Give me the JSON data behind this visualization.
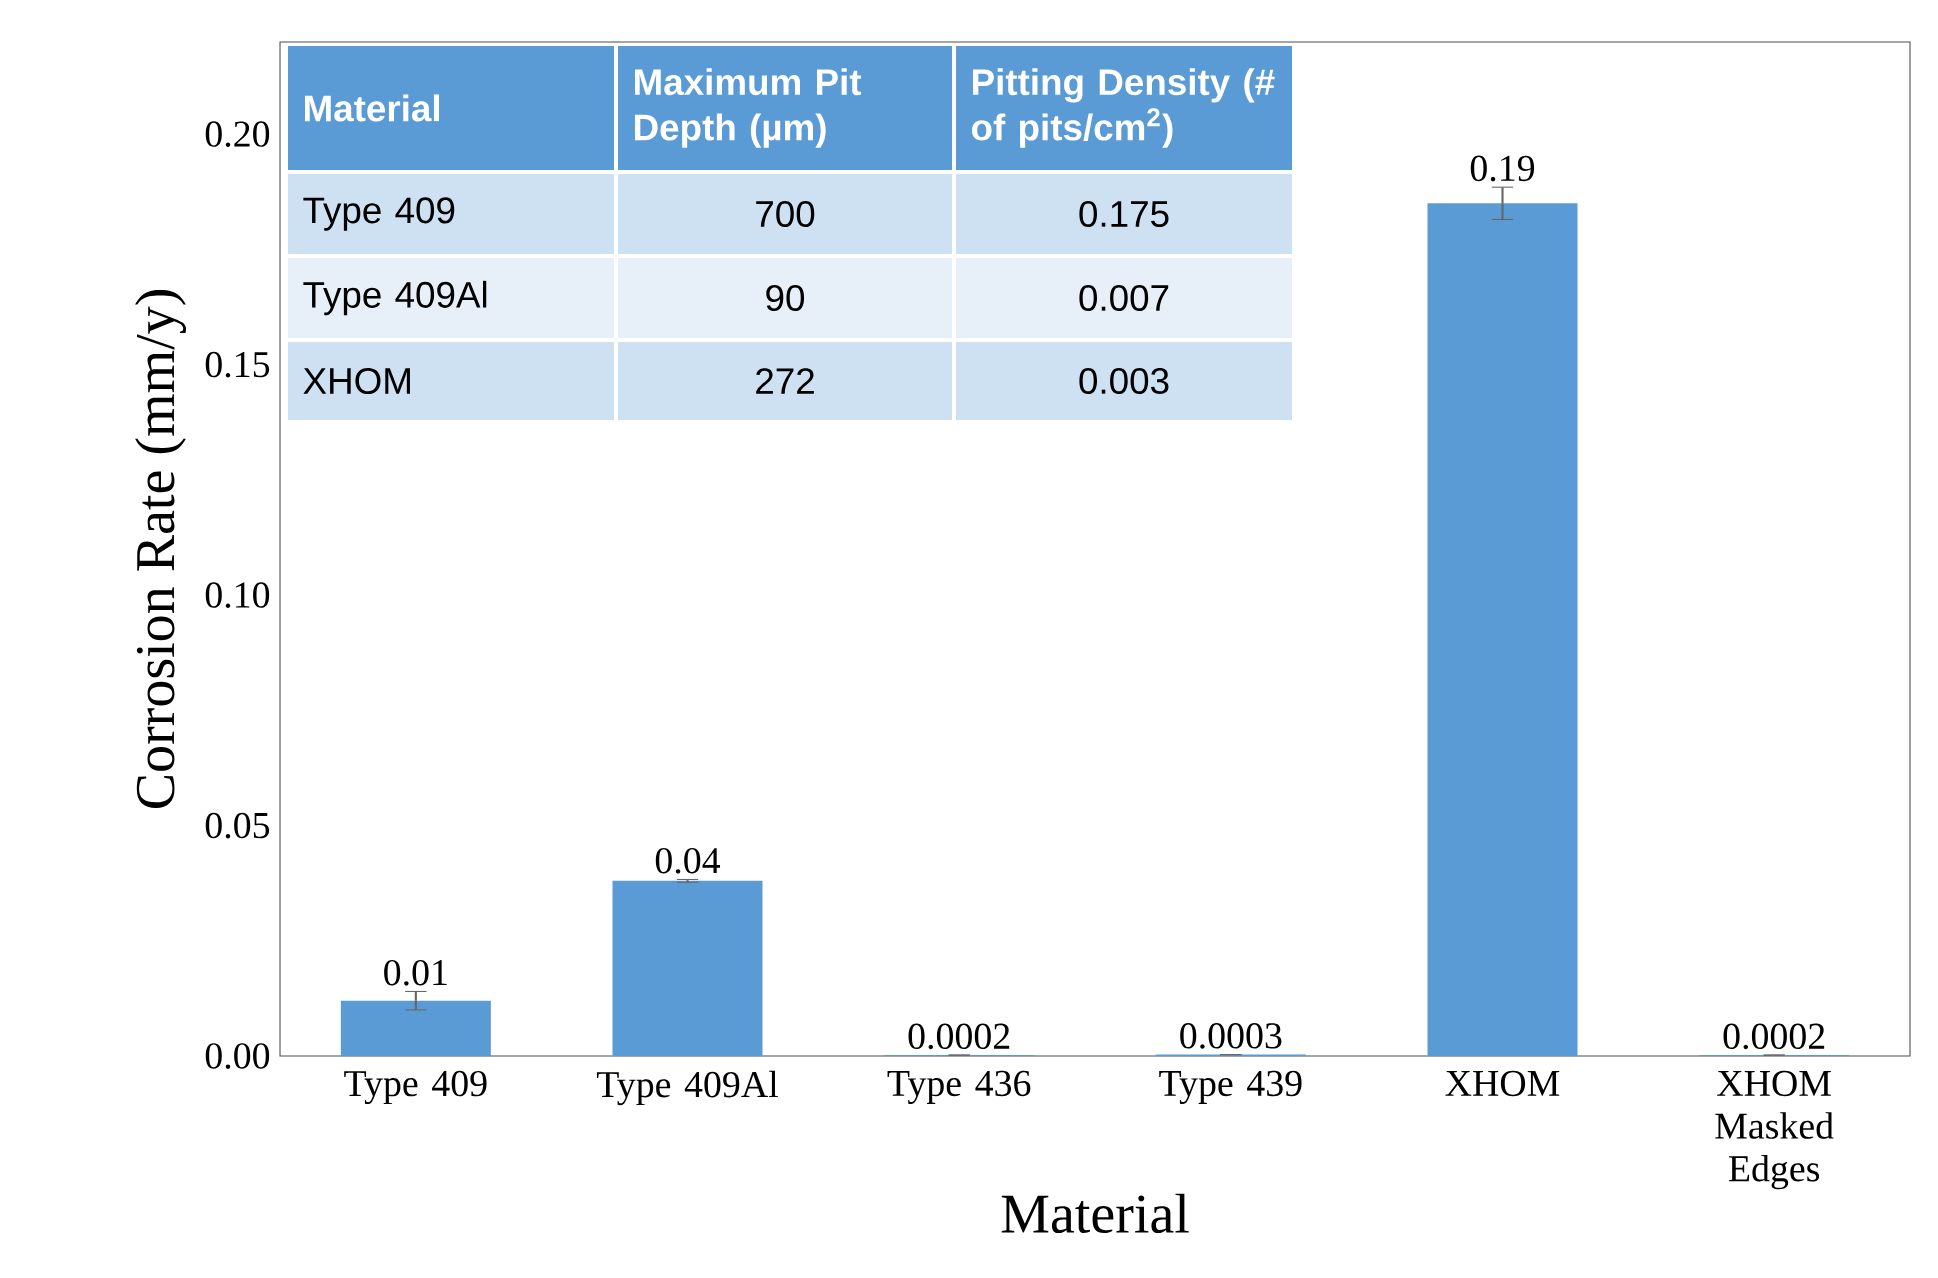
{
  "chart_data": {
    "type": "bar",
    "xlabel": "Material",
    "ylabel": "Corrosion Rate (mm/y)",
    "categories": [
      "Type 409",
      "Type 409Al",
      "Type 436",
      "Type 439",
      "XHOM",
      "XHOM Masked Edges"
    ],
    "values": [
      0.012,
      0.038,
      0.0002,
      0.0003,
      0.185,
      0.0002
    ],
    "errors": [
      0.002,
      0.0003,
      null,
      null,
      0.0035,
      null
    ],
    "value_labels": [
      "0.01",
      "0.04",
      "0.0002",
      "0.0003",
      "0.19",
      "0.0002"
    ],
    "color": "#5b9bd5",
    "ylim": [
      0,
      0.22
    ],
    "yticks": [
      {
        "value": 0,
        "label": "0.00"
      },
      {
        "value": 0.05,
        "label": "0.05"
      },
      {
        "value": 0.1,
        "label": "0.10"
      },
      {
        "value": 0.15,
        "label": "0.15"
      },
      {
        "value": 0.2,
        "label": "0.20"
      }
    ],
    "grid": false,
    "annotations": [
      "Material",
      "Maximum Pit Depth (µm)",
      "Pitting Density (# of pits/cm$^{2}$)",
      "Type 409",
      "700",
      "0.175",
      "Type 409Al",
      "90",
      "0.007",
      "XHOM",
      "272",
      "0.003"
    ]
  }
}
